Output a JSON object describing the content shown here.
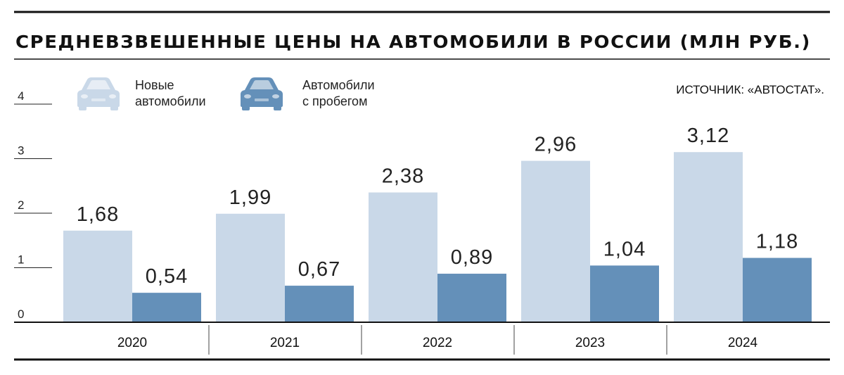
{
  "chart_data": {
    "type": "bar",
    "title": "СРЕДНЕВЗВЕШЕННЫЕ ЦЕНЫ НА АВТОМОБИЛИ В РОССИИ (МЛН РУБ.)",
    "source": "ИСТОЧНИК: «АВТОСТАТ».",
    "categories": [
      "2020",
      "2021",
      "2022",
      "2023",
      "2024"
    ],
    "series": [
      {
        "name": "Новые автомобили",
        "name_lines": [
          "Новые",
          "автомобили"
        ],
        "color": "#c9d8e8",
        "values": [
          1.68,
          1.99,
          2.38,
          2.96,
          3.12
        ],
        "labels": [
          "1,68",
          "1,99",
          "2,38",
          "2,96",
          "3,12"
        ]
      },
      {
        "name": "Автомобили с пробегом",
        "name_lines": [
          "Автомобили",
          "с пробегом"
        ],
        "color": "#6490b9",
        "values": [
          0.54,
          0.67,
          0.89,
          1.04,
          1.18
        ],
        "labels": [
          "0,54",
          "0,67",
          "0,89",
          "1,04",
          "1,18"
        ]
      }
    ],
    "y_ticks": [
      0,
      1,
      2,
      3,
      4
    ],
    "ylim": [
      0,
      4
    ],
    "legend_position": "top-left",
    "legend_icon": "car-icon",
    "grid": false
  }
}
